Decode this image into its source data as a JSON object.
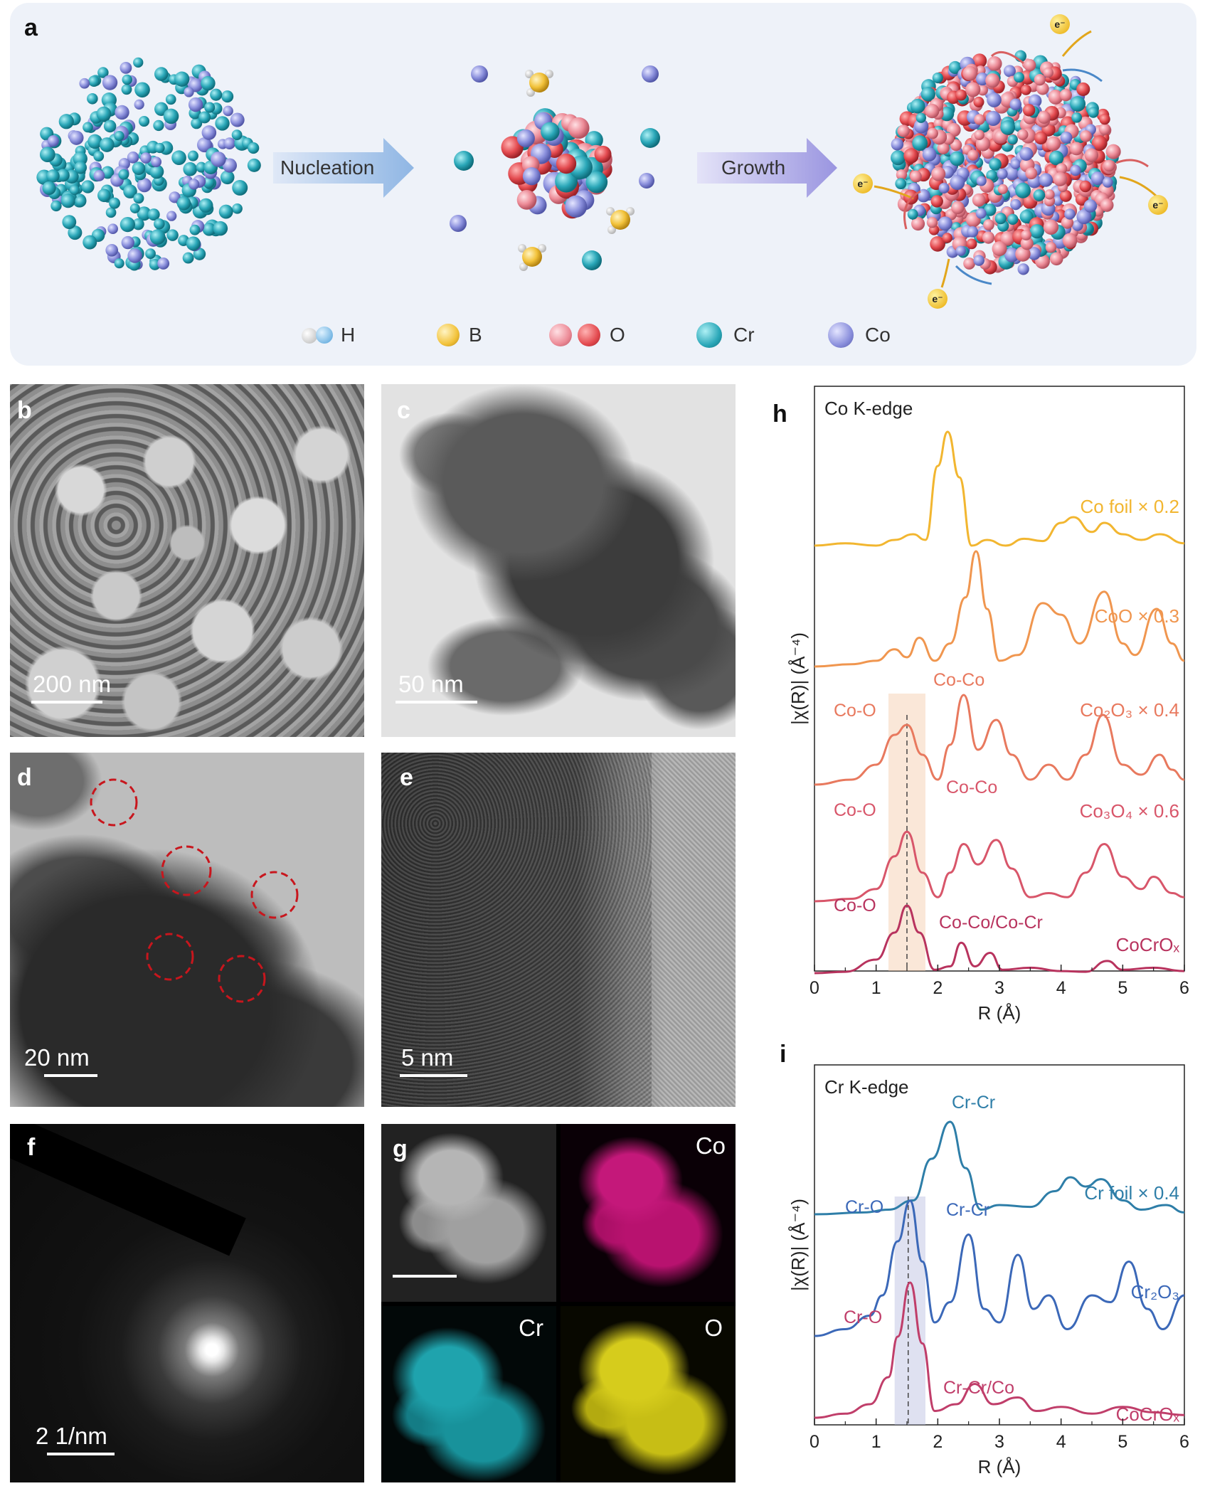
{
  "panel_a": {
    "letter": "a",
    "step1_label": "Nucleation",
    "step2_label": "Growth",
    "electron_label": "e⁻",
    "legend": [
      {
        "label": "H",
        "colors": [
          "#d9d9d9",
          "#72b8e6"
        ]
      },
      {
        "label": "B",
        "colors": [
          "#f2c23a"
        ]
      },
      {
        "label": "O",
        "colors": [
          "#ec8a96",
          "#e34a4f"
        ]
      },
      {
        "label": "Cr",
        "colors": [
          "#2aa7b8"
        ]
      },
      {
        "label": "Co",
        "colors": [
          "#8a8fdc"
        ]
      }
    ]
  },
  "panel_b": {
    "letter": "b",
    "scale": "200 nm"
  },
  "panel_c": {
    "letter": "c",
    "scale": "50 nm"
  },
  "panel_d": {
    "letter": "d",
    "scale": "20 nm"
  },
  "panel_e": {
    "letter": "e",
    "scale": "5 nm"
  },
  "panel_f": {
    "letter": "f",
    "scale": "2 1/nm"
  },
  "panel_g": {
    "letter": "g",
    "labels": {
      "co": "Co",
      "cr": "Cr",
      "o": "O"
    }
  },
  "chart_data": [
    {
      "panel": "h",
      "type": "line",
      "title": "Co K-edge",
      "xlabel": "R (Å)",
      "ylabel": "|χ(R)| (Å⁻⁴)",
      "xlim": [
        0,
        6
      ],
      "xticks": [
        0,
        1,
        2,
        3,
        4,
        5,
        6
      ],
      "highlight": {
        "x_range": [
          1.2,
          1.8
        ],
        "dashed_x": 1.5
      },
      "series": [
        {
          "name": "Co foil × 0.2",
          "color": "#f2b630",
          "points": [
            [
              0,
              0.0
            ],
            [
              0.5,
              0.02
            ],
            [
              1.0,
              0.0
            ],
            [
              1.3,
              0.05
            ],
            [
              1.6,
              0.1
            ],
            [
              1.8,
              0.05
            ],
            [
              2.0,
              0.7
            ],
            [
              2.16,
              1.0
            ],
            [
              2.35,
              0.6
            ],
            [
              2.55,
              0.0
            ],
            [
              2.8,
              0.05
            ],
            [
              3.1,
              0.0
            ],
            [
              3.4,
              0.06
            ],
            [
              3.7,
              0.04
            ],
            [
              4.0,
              0.2
            ],
            [
              4.2,
              0.25
            ],
            [
              4.5,
              0.12
            ],
            [
              4.7,
              0.2
            ],
            [
              5.0,
              0.1
            ],
            [
              5.3,
              0.05
            ],
            [
              5.6,
              0.1
            ],
            [
              6,
              0.02
            ]
          ]
        },
        {
          "name": "CoO × 0.3",
          "color": "#f0964f",
          "points": [
            [
              0,
              0.0
            ],
            [
              0.6,
              0.02
            ],
            [
              1.0,
              0.05
            ],
            [
              1.3,
              0.15
            ],
            [
              1.5,
              0.08
            ],
            [
              1.7,
              0.25
            ],
            [
              1.95,
              0.05
            ],
            [
              2.2,
              0.2
            ],
            [
              2.45,
              0.6
            ],
            [
              2.62,
              1.0
            ],
            [
              2.8,
              0.5
            ],
            [
              3.0,
              0.05
            ],
            [
              3.3,
              0.1
            ],
            [
              3.7,
              0.55
            ],
            [
              4.0,
              0.45
            ],
            [
              4.3,
              0.2
            ],
            [
              4.7,
              0.65
            ],
            [
              5.0,
              0.2
            ],
            [
              5.2,
              0.1
            ],
            [
              5.55,
              0.5
            ],
            [
              5.8,
              0.2
            ],
            [
              6,
              0.05
            ]
          ]
        },
        {
          "name": "Co₂O₃ × 0.4",
          "color": "#e8795e",
          "points": [
            [
              0,
              0.0
            ],
            [
              0.6,
              0.05
            ],
            [
              1.0,
              0.2
            ],
            [
              1.3,
              0.5
            ],
            [
              1.5,
              0.6
            ],
            [
              1.75,
              0.3
            ],
            [
              2.0,
              0.05
            ],
            [
              2.2,
              0.4
            ],
            [
              2.42,
              0.9
            ],
            [
              2.65,
              0.35
            ],
            [
              2.95,
              0.65
            ],
            [
              3.2,
              0.3
            ],
            [
              3.5,
              0.05
            ],
            [
              3.8,
              0.2
            ],
            [
              4.1,
              0.05
            ],
            [
              4.4,
              0.3
            ],
            [
              4.68,
              0.7
            ],
            [
              5.0,
              0.2
            ],
            [
              5.3,
              0.1
            ],
            [
              5.6,
              0.3
            ],
            [
              5.8,
              0.15
            ],
            [
              6,
              0.05
            ]
          ]
        },
        {
          "name": "Co₃O₄ × 0.6",
          "color": "#d8566a",
          "points": [
            [
              0,
              0.0
            ],
            [
              0.6,
              0.03
            ],
            [
              1.0,
              0.15
            ],
            [
              1.3,
              0.55
            ],
            [
              1.5,
              0.85
            ],
            [
              1.75,
              0.35
            ],
            [
              2.0,
              0.05
            ],
            [
              2.2,
              0.35
            ],
            [
              2.42,
              0.7
            ],
            [
              2.65,
              0.45
            ],
            [
              2.95,
              0.75
            ],
            [
              3.2,
              0.4
            ],
            [
              3.5,
              0.05
            ],
            [
              3.8,
              0.1
            ],
            [
              4.1,
              0.05
            ],
            [
              4.4,
              0.35
            ],
            [
              4.7,
              0.7
            ],
            [
              5.0,
              0.3
            ],
            [
              5.3,
              0.15
            ],
            [
              5.5,
              0.3
            ],
            [
              5.8,
              0.1
            ],
            [
              6,
              0.05
            ]
          ]
        },
        {
          "name": "CoCrOₓ",
          "color": "#b8335e",
          "points": [
            [
              0,
              0.0
            ],
            [
              0.5,
              0.02
            ],
            [
              1.0,
              0.2
            ],
            [
              1.3,
              0.6
            ],
            [
              1.5,
              1.0
            ],
            [
              1.7,
              0.6
            ],
            [
              1.95,
              0.05
            ],
            [
              2.2,
              0.1
            ],
            [
              2.38,
              0.45
            ],
            [
              2.6,
              0.1
            ],
            [
              2.85,
              0.3
            ],
            [
              3.05,
              0.05
            ],
            [
              3.5,
              0.08
            ],
            [
              4.0,
              0.03
            ],
            [
              4.4,
              0.02
            ],
            [
              4.75,
              0.18
            ],
            [
              5.0,
              0.05
            ],
            [
              5.5,
              0.08
            ],
            [
              6,
              0.03
            ]
          ]
        }
      ],
      "annotations": [
        "Co-Co",
        "Co-O",
        "Co-Co",
        "Co-O",
        "Co-O",
        "Co-Co/Co-Cr"
      ]
    },
    {
      "panel": "i",
      "type": "line",
      "title": "Cr K-edge",
      "xlabel": "R (Å)",
      "ylabel": "|χ(R)| (Å⁻⁴)",
      "xlim": [
        0,
        6
      ],
      "xticks": [
        0,
        1,
        2,
        3,
        4,
        5,
        6
      ],
      "highlight": {
        "x_range": [
          1.3,
          1.8
        ],
        "dashed_x": 1.52
      },
      "series": [
        {
          "name": "Cr foil × 0.4",
          "color": "#2e7ea8",
          "points": [
            [
              0,
              0.0
            ],
            [
              0.8,
              0.02
            ],
            [
              1.2,
              0.05
            ],
            [
              1.6,
              0.15
            ],
            [
              1.9,
              0.6
            ],
            [
              2.2,
              1.0
            ],
            [
              2.45,
              0.5
            ],
            [
              2.7,
              0.05
            ],
            [
              3.0,
              0.1
            ],
            [
              3.5,
              0.08
            ],
            [
              3.9,
              0.25
            ],
            [
              4.15,
              0.4
            ],
            [
              4.4,
              0.3
            ],
            [
              4.65,
              0.38
            ],
            [
              5.0,
              0.15
            ],
            [
              5.3,
              0.05
            ],
            [
              5.7,
              0.1
            ],
            [
              6,
              0.02
            ]
          ]
        },
        {
          "name": "Cr₂O₃",
          "color": "#3b68b8",
          "points": [
            [
              0,
              0.0
            ],
            [
              0.5,
              0.05
            ],
            [
              0.9,
              0.15
            ],
            [
              1.1,
              0.3
            ],
            [
              1.35,
              0.7
            ],
            [
              1.55,
              1.0
            ],
            [
              1.75,
              0.55
            ],
            [
              1.95,
              0.1
            ],
            [
              2.2,
              0.25
            ],
            [
              2.5,
              0.75
            ],
            [
              2.75,
              0.2
            ],
            [
              3.0,
              0.1
            ],
            [
              3.3,
              0.6
            ],
            [
              3.55,
              0.2
            ],
            [
              3.8,
              0.3
            ],
            [
              4.1,
              0.05
            ],
            [
              4.5,
              0.3
            ],
            [
              4.8,
              0.25
            ],
            [
              5.1,
              0.55
            ],
            [
              5.4,
              0.2
            ],
            [
              5.65,
              0.05
            ],
            [
              6,
              0.3
            ]
          ]
        },
        {
          "name": "CoCrOₓ",
          "color": "#c03e6a",
          "points": [
            [
              0,
              0.0
            ],
            [
              0.5,
              0.03
            ],
            [
              0.9,
              0.1
            ],
            [
              1.2,
              0.3
            ],
            [
              1.35,
              0.6
            ],
            [
              1.55,
              1.0
            ],
            [
              1.75,
              0.55
            ],
            [
              1.95,
              0.05
            ],
            [
              2.3,
              0.1
            ],
            [
              2.6,
              0.25
            ],
            [
              2.9,
              0.1
            ],
            [
              3.3,
              0.15
            ],
            [
              3.6,
              0.05
            ],
            [
              4.0,
              0.08
            ],
            [
              4.5,
              0.03
            ],
            [
              5.0,
              0.08
            ],
            [
              5.5,
              0.04
            ],
            [
              6,
              0.02
            ]
          ]
        }
      ],
      "annotations": [
        "Cr-Cr",
        "Cr-O",
        "Cr-Cr",
        "Cr-O",
        "Cr-Cr/Co"
      ]
    }
  ]
}
